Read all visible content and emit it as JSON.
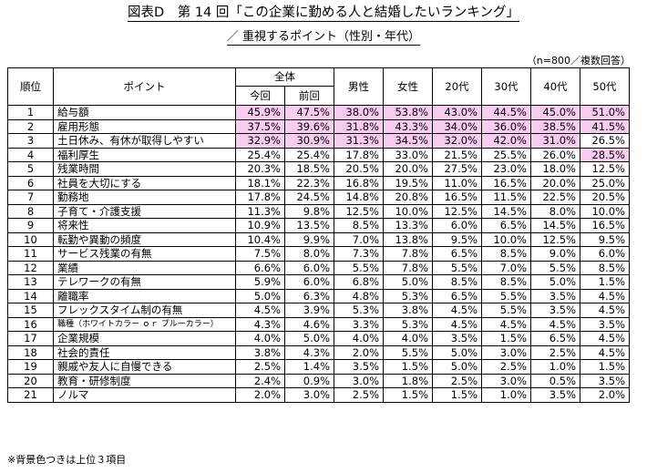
{
  "title": "図表D　第 14 回「この企業に勤める人と結婚したいランキング」",
  "subtitle": "／ 重視するポイント（性別・年代）",
  "note": "（n=800／複数回答）",
  "footnote": "※背景色つきは上位３項目",
  "colors": {
    "highlight": "#f8ccf0",
    "border": "#000000"
  },
  "headers": {
    "rank": "順位",
    "point": "ポイント",
    "overall": "全体",
    "current": "今回",
    "previous": "前回",
    "male": "男性",
    "female": "女性",
    "age20": "20代",
    "age30": "30代",
    "age40": "40代",
    "age50": "50代"
  },
  "rows": [
    {
      "rank": "1",
      "point": "給与額",
      "values": [
        "45.9%",
        "47.5%",
        "38.0%",
        "53.8%",
        "43.0%",
        "44.5%",
        "45.0%",
        "51.0%"
      ],
      "highlight": [
        1,
        1,
        1,
        1,
        1,
        1,
        1,
        1
      ]
    },
    {
      "rank": "2",
      "point": "雇用形態",
      "values": [
        "37.5%",
        "39.6%",
        "31.8%",
        "43.3%",
        "34.0%",
        "36.0%",
        "38.5%",
        "41.5%"
      ],
      "highlight": [
        1,
        1,
        1,
        1,
        1,
        1,
        1,
        1
      ]
    },
    {
      "rank": "3",
      "point": "土日休み、有休が取得しやすい",
      "values": [
        "32.9%",
        "30.9%",
        "31.3%",
        "34.5%",
        "32.0%",
        "42.0%",
        "31.0%",
        "26.5%"
      ],
      "highlight": [
        1,
        1,
        1,
        1,
        1,
        1,
        1,
        0
      ]
    },
    {
      "rank": "4",
      "point": "福利厚生",
      "values": [
        "25.4%",
        "25.4%",
        "17.8%",
        "33.0%",
        "21.5%",
        "25.5%",
        "26.0%",
        "28.5%"
      ],
      "highlight": [
        0,
        0,
        0,
        0,
        0,
        0,
        0,
        1
      ]
    },
    {
      "rank": "5",
      "point": "残業時間",
      "values": [
        "20.3%",
        "18.5%",
        "20.5%",
        "20.0%",
        "27.5%",
        "23.0%",
        "18.0%",
        "12.5%"
      ],
      "highlight": [
        0,
        0,
        0,
        0,
        0,
        0,
        0,
        0
      ]
    },
    {
      "rank": "6",
      "point": "社員を大切にする",
      "values": [
        "18.1%",
        "22.3%",
        "16.8%",
        "19.5%",
        "11.0%",
        "16.5%",
        "20.0%",
        "25.0%"
      ],
      "highlight": [
        0,
        0,
        0,
        0,
        0,
        0,
        0,
        0
      ]
    },
    {
      "rank": "7",
      "point": "勤務地",
      "values": [
        "17.8%",
        "24.5%",
        "14.8%",
        "20.8%",
        "16.5%",
        "11.5%",
        "22.5%",
        "20.5%"
      ],
      "highlight": [
        0,
        0,
        0,
        0,
        0,
        0,
        0,
        0
      ]
    },
    {
      "rank": "8",
      "point": "子育て・介護支援",
      "values": [
        "11.3%",
        "9.8%",
        "12.5%",
        "10.0%",
        "12.5%",
        "14.5%",
        "8.0%",
        "10.0%"
      ],
      "highlight": [
        0,
        0,
        0,
        0,
        0,
        0,
        0,
        0
      ]
    },
    {
      "rank": "9",
      "point": "将来性",
      "values": [
        "10.9%",
        "13.5%",
        "8.5%",
        "13.3%",
        "6.0%",
        "6.5%",
        "14.5%",
        "16.5%"
      ],
      "highlight": [
        0,
        0,
        0,
        0,
        0,
        0,
        0,
        0
      ]
    },
    {
      "rank": "10",
      "point": "転勤や異動の頻度",
      "values": [
        "10.4%",
        "9.9%",
        "7.0%",
        "13.8%",
        "9.5%",
        "10.0%",
        "12.5%",
        "9.5%"
      ],
      "highlight": [
        0,
        0,
        0,
        0,
        0,
        0,
        0,
        0
      ]
    },
    {
      "rank": "11",
      "point": "サービス残業の有無",
      "values": [
        "7.5%",
        "8.0%",
        "7.3%",
        "7.8%",
        "6.5%",
        "8.5%",
        "9.0%",
        "6.0%"
      ],
      "highlight": [
        0,
        0,
        0,
        0,
        0,
        0,
        0,
        0
      ]
    },
    {
      "rank": "12",
      "point": "業績",
      "values": [
        "6.6%",
        "6.0%",
        "5.5%",
        "7.8%",
        "5.5%",
        "7.0%",
        "5.5%",
        "8.5%"
      ],
      "highlight": [
        0,
        0,
        0,
        0,
        0,
        0,
        0,
        0
      ]
    },
    {
      "rank": "13",
      "point": "テレワークの有無",
      "values": [
        "5.9%",
        "6.0%",
        "6.8%",
        "5.0%",
        "8.5%",
        "8.5%",
        "5.0%",
        "1.5%"
      ],
      "highlight": [
        0,
        0,
        0,
        0,
        0,
        0,
        0,
        0
      ]
    },
    {
      "rank": "14",
      "point": "離職率",
      "values": [
        "5.0%",
        "6.3%",
        "4.8%",
        "5.3%",
        "6.5%",
        "5.5%",
        "3.5%",
        "4.5%"
      ],
      "highlight": [
        0,
        0,
        0,
        0,
        0,
        0,
        0,
        0
      ]
    },
    {
      "rank": "15",
      "point": "フレックスタイム制の有無",
      "values": [
        "4.5%",
        "3.9%",
        "5.3%",
        "3.8%",
        "4.5%",
        "5.5%",
        "3.5%",
        "4.5%"
      ],
      "highlight": [
        0,
        0,
        0,
        0,
        0,
        0,
        0,
        0
      ]
    },
    {
      "rank": "16",
      "point": "職種（ホワイトカラー ｏｒ ブルーカラー）",
      "small": true,
      "values": [
        "4.3%",
        "4.6%",
        "3.3%",
        "5.3%",
        "4.5%",
        "4.5%",
        "4.5%",
        "3.5%"
      ],
      "highlight": [
        0,
        0,
        0,
        0,
        0,
        0,
        0,
        0
      ]
    },
    {
      "rank": "17",
      "point": "企業規模",
      "values": [
        "4.0%",
        "5.0%",
        "4.0%",
        "4.0%",
        "3.5%",
        "1.5%",
        "6.5%",
        "4.5%"
      ],
      "highlight": [
        0,
        0,
        0,
        0,
        0,
        0,
        0,
        0
      ]
    },
    {
      "rank": "18",
      "point": "社会的責任",
      "values": [
        "3.8%",
        "4.3%",
        "2.0%",
        "5.5%",
        "5.0%",
        "3.0%",
        "2.5%",
        "4.5%"
      ],
      "highlight": [
        0,
        0,
        0,
        0,
        0,
        0,
        0,
        0
      ]
    },
    {
      "rank": "19",
      "point": "親戚や友人に自慢できる",
      "values": [
        "2.5%",
        "1.4%",
        "3.5%",
        "1.5%",
        "5.0%",
        "2.5%",
        "1.0%",
        "1.5%"
      ],
      "highlight": [
        0,
        0,
        0,
        0,
        0,
        0,
        0,
        0
      ]
    },
    {
      "rank": "20",
      "point": "教育・研修制度",
      "values": [
        "2.4%",
        "0.9%",
        "3.0%",
        "1.8%",
        "2.5%",
        "3.0%",
        "0.5%",
        "3.5%"
      ],
      "highlight": [
        0,
        0,
        0,
        0,
        0,
        0,
        0,
        0
      ]
    },
    {
      "rank": "21",
      "point": "ノルマ",
      "values": [
        "2.0%",
        "3.0%",
        "2.5%",
        "1.5%",
        "1.5%",
        "1.0%",
        "3.5%",
        "2.0%"
      ],
      "highlight": [
        0,
        0,
        0,
        0,
        0,
        0,
        0,
        0
      ]
    }
  ]
}
